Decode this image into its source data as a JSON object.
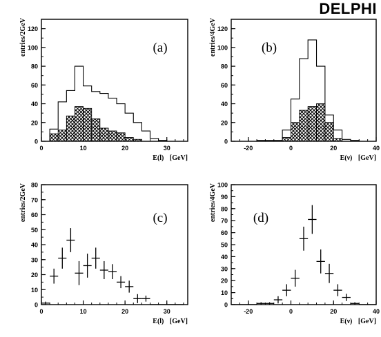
{
  "logo": "DELPHI",
  "chart_data": [
    {
      "panel": "(a)",
      "type": "histogram",
      "xlabel": "E(l)",
      "xunit": "[GeV]",
      "ylabel": "entries/2GeV",
      "xlim": [
        0,
        35
      ],
      "ylim": [
        0,
        130
      ],
      "xticks": [
        0,
        10,
        20,
        30
      ],
      "yticks": [
        0,
        20,
        40,
        60,
        80,
        100,
        120
      ],
      "bin_width": 2,
      "series": [
        {
          "style": "outline",
          "x": [
            2,
            4,
            6,
            8,
            10,
            12,
            14,
            16,
            18,
            20,
            22,
            24,
            26,
            28,
            30,
            32
          ],
          "values": [
            13,
            42,
            54,
            80,
            59,
            53,
            51,
            46,
            40,
            30,
            20,
            11,
            3,
            1,
            0,
            0
          ]
        },
        {
          "style": "hatched",
          "x": [
            2,
            4,
            6,
            8,
            10,
            12,
            14,
            16,
            18,
            20,
            22,
            24,
            26,
            28,
            30,
            32
          ],
          "values": [
            8,
            12,
            27,
            37,
            35,
            24,
            14,
            11,
            9,
            4,
            2,
            0,
            0,
            0,
            0,
            0
          ]
        }
      ]
    },
    {
      "panel": "(b)",
      "type": "histogram",
      "xlabel": "E(ν)",
      "xunit": "[GeV]",
      "ylabel": "entries/4GeV",
      "xlim": [
        -28,
        40
      ],
      "ylim": [
        0,
        130
      ],
      "xticks": [
        -20,
        0,
        20,
        40
      ],
      "yticks": [
        0,
        20,
        40,
        60,
        80,
        100,
        120
      ],
      "bin_width": 4,
      "series": [
        {
          "style": "outline",
          "x": [
            -28,
            -24,
            -20,
            -16,
            -12,
            -8,
            -4,
            0,
            4,
            8,
            12,
            16,
            20,
            24,
            28,
            32,
            36
          ],
          "values": [
            0,
            0,
            0,
            1,
            1,
            1,
            12,
            45,
            88,
            108,
            80,
            28,
            12,
            2,
            1,
            0,
            0
          ]
        },
        {
          "style": "hatched",
          "x": [
            -28,
            -24,
            -20,
            -16,
            -12,
            -8,
            -4,
            0,
            4,
            8,
            12,
            16,
            20,
            24,
            28,
            32,
            36
          ],
          "values": [
            0,
            0,
            0,
            0,
            0,
            0,
            4,
            20,
            33,
            37,
            40,
            20,
            3,
            0,
            0,
            0,
            0
          ]
        }
      ]
    },
    {
      "panel": "(c)",
      "type": "scatter",
      "xlabel": "E(l)",
      "xunit": "[GeV]",
      "ylabel": "entries/2GeV",
      "xlim": [
        0,
        35
      ],
      "ylim": [
        0,
        80
      ],
      "xticks": [
        0,
        10,
        20,
        30
      ],
      "yticks": [
        0,
        10,
        20,
        30,
        40,
        50,
        60,
        70,
        80
      ],
      "bin_width": 2,
      "points": [
        {
          "x": 1,
          "y": 1,
          "err": 1
        },
        {
          "x": 3,
          "y": 19,
          "err": 5
        },
        {
          "x": 5,
          "y": 31,
          "err": 7
        },
        {
          "x": 7,
          "y": 43,
          "err": 8
        },
        {
          "x": 9,
          "y": 21,
          "err": 8
        },
        {
          "x": 11,
          "y": 26,
          "err": 8
        },
        {
          "x": 13,
          "y": 31,
          "err": 7
        },
        {
          "x": 15,
          "y": 23,
          "err": 6
        },
        {
          "x": 17,
          "y": 22,
          "err": 5
        },
        {
          "x": 19,
          "y": 15,
          "err": 4
        },
        {
          "x": 21,
          "y": 12,
          "err": 4
        },
        {
          "x": 23,
          "y": 4,
          "err": 3
        },
        {
          "x": 25,
          "y": 4,
          "err": 2
        },
        {
          "x": 27,
          "y": 0,
          "err": 0
        },
        {
          "x": 29,
          "y": 0,
          "err": 0
        },
        {
          "x": 31,
          "y": 0,
          "err": 0
        },
        {
          "x": 33,
          "y": 0,
          "err": 0
        }
      ]
    },
    {
      "panel": "(d)",
      "type": "scatter",
      "xlabel": "E(ν)",
      "xunit": "[GeV]",
      "ylabel": "entries/4GeV",
      "xlim": [
        -28,
        40
      ],
      "ylim": [
        0,
        100
      ],
      "xticks": [
        -20,
        0,
        20,
        40
      ],
      "yticks": [
        0,
        10,
        20,
        30,
        40,
        50,
        60,
        70,
        80,
        90,
        100
      ],
      "bin_width": 4,
      "points": [
        {
          "x": -26,
          "y": 0,
          "err": 0
        },
        {
          "x": -22,
          "y": 0,
          "err": 0
        },
        {
          "x": -18,
          "y": 0,
          "err": 0
        },
        {
          "x": -14,
          "y": 1,
          "err": 1
        },
        {
          "x": -10,
          "y": 1,
          "err": 1
        },
        {
          "x": -6,
          "y": 4,
          "err": 3
        },
        {
          "x": -2,
          "y": 12,
          "err": 5
        },
        {
          "x": 2,
          "y": 22,
          "err": 7
        },
        {
          "x": 6,
          "y": 55,
          "err": 10
        },
        {
          "x": 10,
          "y": 71,
          "err": 12
        },
        {
          "x": 14,
          "y": 36,
          "err": 10
        },
        {
          "x": 18,
          "y": 26,
          "err": 8
        },
        {
          "x": 22,
          "y": 12,
          "err": 5
        },
        {
          "x": 26,
          "y": 6,
          "err": 3
        },
        {
          "x": 30,
          "y": 1,
          "err": 1
        },
        {
          "x": 34,
          "y": 0,
          "err": 0
        },
        {
          "x": 38,
          "y": 0,
          "err": 0
        }
      ]
    }
  ]
}
